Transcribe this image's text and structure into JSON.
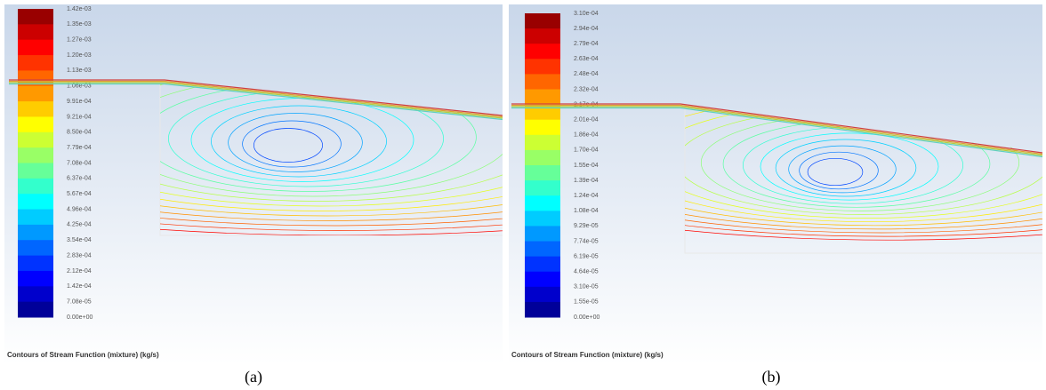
{
  "panels": [
    {
      "legend": [
        "1.42e-03",
        "1.35e-03",
        "1.27e-03",
        "1.20e-03",
        "1.13e-03",
        "1.06e-03",
        "9.91e-04",
        "9.21e-04",
        "8.50e-04",
        "7.79e-04",
        "7.08e-04",
        "6.37e-04",
        "5.67e-04",
        "4.96e-04",
        "4.25e-04",
        "3.54e-04",
        "2.83e-04",
        "2.12e-04",
        "1.42e-04",
        "7.08e-05",
        "0.00e+00"
      ],
      "caption": "Contours of Stream Function (mixture)  (kg/s)",
      "label": "(a)"
    },
    {
      "legend": [
        "3.10e-04",
        "2.94e-04",
        "2.79e-04",
        "2.63e-04",
        "2.48e-04",
        "2.32e-04",
        "2.17e-04",
        "2.01e-04",
        "1.86e-04",
        "1.70e-04",
        "1.55e-04",
        "1.39e-04",
        "1.24e-04",
        "1.08e-04",
        "9.29e-05",
        "7.74e-05",
        "6.19e-05",
        "4.64e-05",
        "3.10e-05",
        "1.55e-05",
        "0.00e+00"
      ],
      "caption": "Contours of Stream Function (mixture)  (kg/s)",
      "label": "(b)"
    }
  ]
}
